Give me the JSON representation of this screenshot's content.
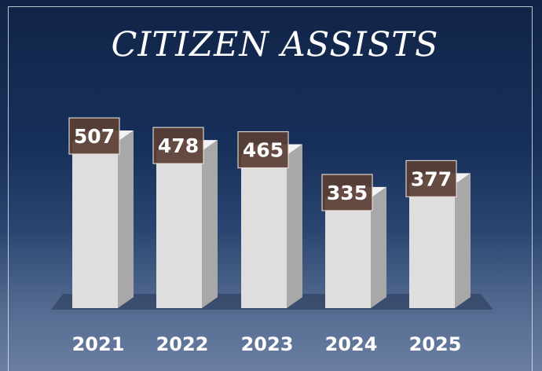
{
  "chart_data": {
    "type": "bar",
    "title": "CITIZEN ASSISTS",
    "categories": [
      "2021",
      "2022",
      "2023",
      "2024",
      "2025"
    ],
    "values": [
      507,
      478,
      465,
      335,
      377
    ],
    "xlabel": "",
    "ylabel": "",
    "ylim": [
      0,
      600
    ],
    "grid": false,
    "legend": "none",
    "style": "3d-column",
    "colors": {
      "bar_front": "#dedede",
      "bar_side": "#a8a8a8",
      "bar_top": "#f2f2f2",
      "label_box": "#5a3e35",
      "text": "#ffffff",
      "background_top": "#112447",
      "background_bottom": "#6a7ea2"
    }
  }
}
